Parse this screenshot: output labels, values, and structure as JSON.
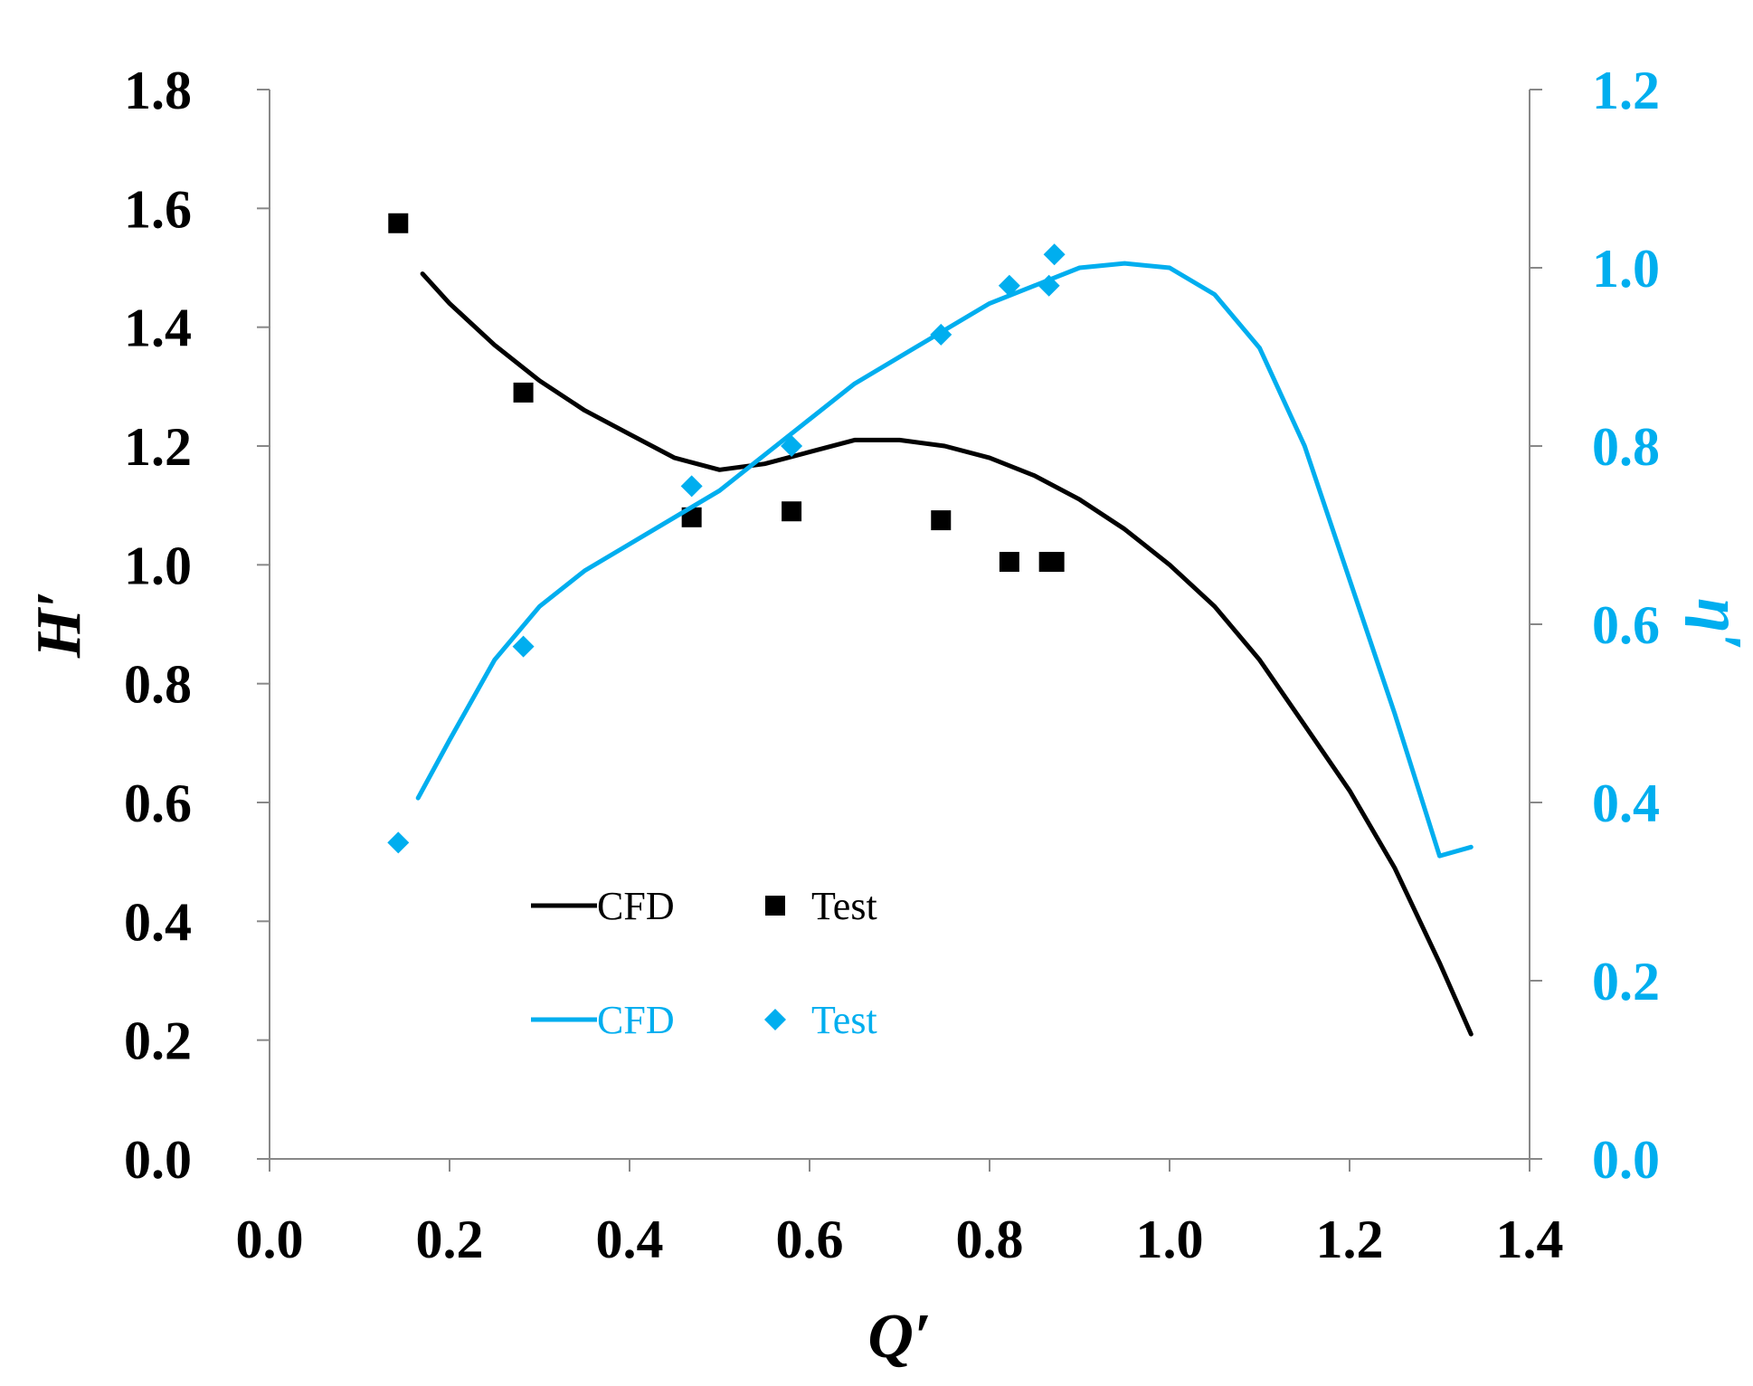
{
  "colors": {
    "primary": "#000000",
    "secondary": "#00AEEF",
    "axis": "#888888"
  },
  "chart_data": {
    "type": "line",
    "xlabel": "Q′",
    "ylabel_left": "H′",
    "ylabel_right": "η′",
    "xlim": [
      0,
      1.4
    ],
    "ylim_left": [
      0,
      1.8
    ],
    "ylim_right": [
      0,
      1.2
    ],
    "x_ticks": [
      "0.0",
      "0.2",
      "0.4",
      "0.6",
      "0.8",
      "1.0",
      "1.2",
      "1.4"
    ],
    "y_left_ticks": [
      "0.0",
      "0.2",
      "0.4",
      "0.6",
      "0.8",
      "1.0",
      "1.2",
      "1.4",
      "1.6",
      "1.8"
    ],
    "y_right_ticks": [
      "0.0",
      "0.2",
      "0.4",
      "0.6",
      "0.8",
      "1.0",
      "1.2"
    ],
    "grid": false,
    "legend_position": "lower-left",
    "legend": [
      {
        "label": "CFD",
        "series": "H_cfd"
      },
      {
        "label": "Test",
        "series": "H_test"
      },
      {
        "label": "CFD",
        "series": "eta_cfd"
      },
      {
        "label": "Test",
        "series": "eta_test"
      }
    ],
    "series": [
      {
        "name": "H_cfd",
        "label": "CFD",
        "axis": "left",
        "kind": "line",
        "color": "#000000",
        "x": [
          0.17,
          0.2,
          0.25,
          0.3,
          0.35,
          0.4,
          0.45,
          0.5,
          0.55,
          0.6,
          0.65,
          0.7,
          0.75,
          0.8,
          0.85,
          0.9,
          0.95,
          1.0,
          1.05,
          1.1,
          1.15,
          1.2,
          1.25,
          1.3,
          1.335
        ],
        "y": [
          1.49,
          1.44,
          1.37,
          1.31,
          1.26,
          1.22,
          1.18,
          1.16,
          1.17,
          1.19,
          1.21,
          1.21,
          1.2,
          1.18,
          1.15,
          1.11,
          1.06,
          1.0,
          0.93,
          0.84,
          0.73,
          0.62,
          0.49,
          0.33,
          0.21
        ]
      },
      {
        "name": "H_test",
        "label": "Test",
        "axis": "left",
        "kind": "marker",
        "marker": "square",
        "color": "#000000",
        "x": [
          0.143,
          0.282,
          0.469,
          0.58,
          0.746,
          0.822,
          0.866,
          0.872
        ],
        "y": [
          1.575,
          1.29,
          1.08,
          1.09,
          1.075,
          1.005,
          1.005,
          1.005
        ]
      },
      {
        "name": "eta_cfd",
        "label": "CFD",
        "axis": "right",
        "kind": "line",
        "color": "#00AEEF",
        "x": [
          0.165,
          0.2,
          0.25,
          0.3,
          0.35,
          0.4,
          0.45,
          0.5,
          0.55,
          0.6,
          0.65,
          0.7,
          0.75,
          0.8,
          0.85,
          0.9,
          0.95,
          1.0,
          1.05,
          1.1,
          1.15,
          1.2,
          1.25,
          1.3,
          1.335
        ],
        "y": [
          0.405,
          0.47,
          0.56,
          0.62,
          0.66,
          0.69,
          0.72,
          0.75,
          0.79,
          0.83,
          0.87,
          0.9,
          0.93,
          0.96,
          0.98,
          1.0,
          1.005,
          1.0,
          0.97,
          0.91,
          0.8,
          0.65,
          0.5,
          0.34,
          0.35
        ]
      },
      {
        "name": "eta_test",
        "label": "Test",
        "axis": "right",
        "kind": "marker",
        "marker": "diamond",
        "color": "#00AEEF",
        "x": [
          0.143,
          0.282,
          0.469,
          0.58,
          0.746,
          0.822,
          0.866,
          0.872
        ],
        "y": [
          0.355,
          0.575,
          0.755,
          0.8,
          0.925,
          0.98,
          0.98,
          1.015
        ]
      }
    ]
  }
}
